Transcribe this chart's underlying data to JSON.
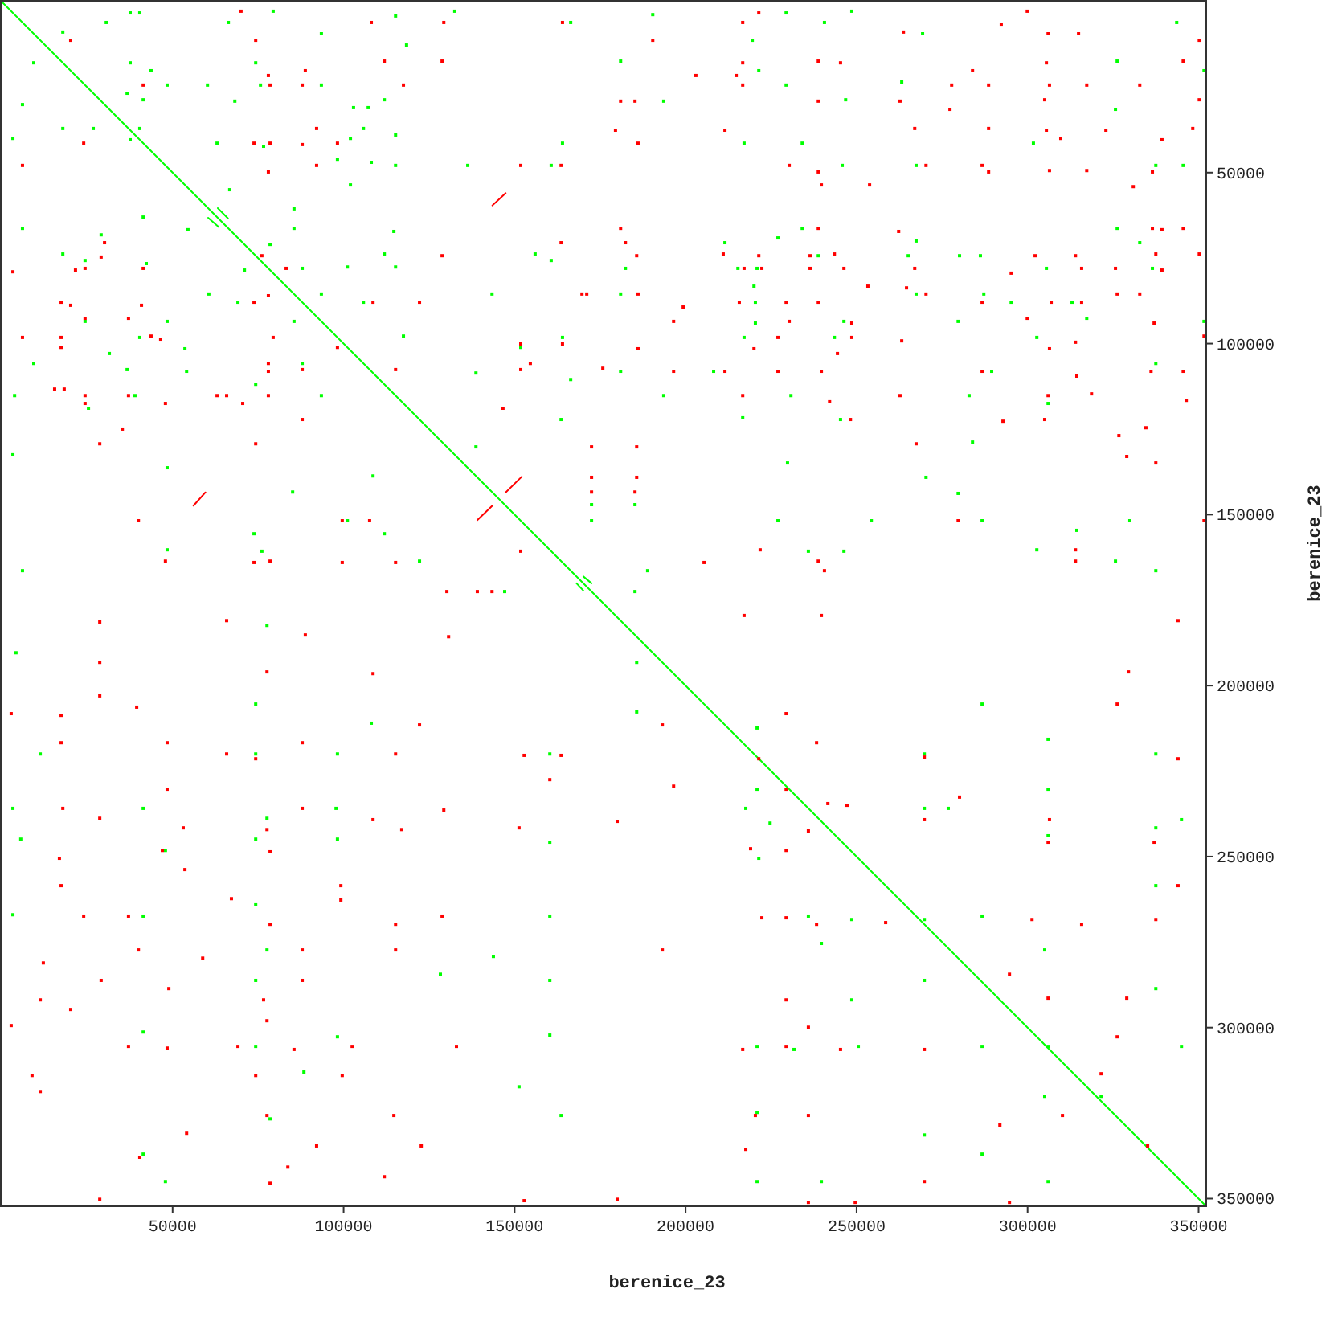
{
  "chart_data": {
    "type": "scatter",
    "xlabel": "berenice_23",
    "ylabel": "berenice_23",
    "xlim": [
      0,
      352000
    ],
    "ylim": [
      352000,
      0
    ],
    "xticks": [
      50000,
      100000,
      150000,
      200000,
      250000,
      300000,
      350000
    ],
    "yticks": [
      50000,
      100000,
      150000,
      200000,
      250000,
      300000,
      350000
    ],
    "marker": "square",
    "series": [
      {
        "type": "line",
        "color": "#00ff00",
        "marker": "none",
        "x": [
          0,
          352000
        ],
        "values": [
          0,
          352000
        ]
      },
      {
        "color": "#00ff00",
        "x": [
          37600,
          40400,
          30600,
          66300,
          79400,
          17900,
          9400,
          37600,
          74300,
          43700,
          48400,
          60200,
          75700,
          93500,
          36700,
          6100,
          41400,
          68200,
          102900,
          107200,
          111900,
          17900,
          26800,
          40400,
          105800,
          115200,
          3300,
          37600,
          63000,
          76600,
          102000,
          98200,
          108100,
          115200,
          136300,
          160700,
          164000,
          118400,
          115200,
          132500,
          166400,
          93500,
          66700,
          102000,
          41400,
          54500,
          6100,
          85500,
          85500,
          114700,
          29100,
          17900,
          24400,
          42300,
          78500,
          71000,
          87900,
          101100,
          111900,
          115200,
          156000,
          160700,
          143400,
          60600,
          69100,
          93500,
          105800,
          85500,
          24400,
          48400,
          40400,
          117500,
          151800,
          164000,
          31500,
          53600,
          9400,
          36700,
          54100,
          87900,
          3800,
          39000,
          74300,
          93500,
          25400,
          138700,
          166400,
          163600,
          138700,
          108600,
          85100,
          48400,
          3300,
          73800,
          111900,
          101100,
          48400,
          76100,
          122200,
          6100,
          147100,
          172500,
          172500,
          190400,
          229400,
          248600,
          240600,
          219500,
          269300,
          343600,
          181000,
          221400,
          229400,
          263200,
          326200,
          351600,
          193600,
          246800,
          325700,
          217100,
          234100,
          301700,
          245800,
          267400,
          337500,
          345500,
          227000,
          211500,
          234100,
          267400,
          326200,
          332800,
          182400,
          215300,
          220900,
          238800,
          265100,
          280100,
          286200,
          305500,
          336500,
          220000,
          181000,
          267400,
          287200,
          220400,
          295200,
          313000,
          220400,
          246300,
          279700,
          317300,
          351600,
          217100,
          243500,
          302700,
          337500,
          181000,
          208200,
          289500,
          193600,
          230800,
          282900,
          306000,
          216700,
          245300,
          283900,
          229800,
          270300,
          279700,
          185200,
          227000,
          254300,
          286700,
          329900,
          314400,
          235900,
          246300,
          302700,
          325700,
          188900,
          337500,
          185200,
          77600,
          4200,
          74300,
          108100,
          74300,
          98200,
          11300,
          3300,
          41400,
          97800,
          77600,
          74300,
          98200,
          5600,
          47900,
          74300,
          3300,
          41400,
          77600,
          74300,
          41400,
          98200,
          74300,
          88400,
          78500,
          41400,
          47900,
          163600,
          160300,
          160300,
          160300,
          160300,
          160300,
          128300,
          151300,
          143800,
          185700,
          185700,
          220900,
          220900,
          217600,
          224700,
          221400,
          235900,
          239700,
          248600,
          248600,
          220900,
          231700,
          250500,
          269800,
          269800,
          276800,
          269800,
          286700,
          286700,
          306000,
          306000,
          306000,
          305000,
          306000,
          305000,
          337500,
          337500,
          345000,
          345000,
          337500,
          337500,
          269800,
          286700,
          269800,
          286700,
          306000,
          321500,
          220900,
          220900,
          239700
        ],
        "values": [
          3300,
          3300,
          6100,
          6100,
          2800,
          8900,
          17900,
          17900,
          17900,
          20200,
          24400,
          24400,
          24400,
          24400,
          26800,
          30100,
          28700,
          29100,
          31000,
          31000,
          28700,
          37100,
          37100,
          37100,
          37100,
          39000,
          40000,
          40400,
          41400,
          42300,
          40000,
          46100,
          47000,
          47900,
          47900,
          47900,
          41400,
          12700,
          4200,
          2800,
          6100,
          9400,
          55000,
          53600,
          63000,
          66700,
          66300,
          60600,
          66300,
          67200,
          68200,
          73800,
          75700,
          76600,
          71000,
          78500,
          78000,
          77600,
          73800,
          77600,
          73800,
          75700,
          85500,
          85500,
          87900,
          85500,
          87900,
          93500,
          93500,
          93500,
          98200,
          97800,
          101100,
          98200,
          102900,
          101500,
          105800,
          107600,
          108100,
          105800,
          115200,
          115200,
          111900,
          115200,
          118900,
          108600,
          110500,
          122200,
          130200,
          138700,
          143400,
          136300,
          132500,
          155600,
          155600,
          151800,
          160300,
          160700,
          163600,
          166400,
          172500,
          147100,
          151800,
          3800,
          3300,
          2800,
          6100,
          11300,
          9400,
          6100,
          17400,
          20200,
          24400,
          23500,
          17400,
          20200,
          29100,
          28700,
          31500,
          41400,
          41400,
          41400,
          47900,
          47900,
          47900,
          47900,
          69100,
          70500,
          66300,
          70000,
          66300,
          70500,
          78000,
          78000,
          78000,
          74300,
          74300,
          74300,
          74300,
          78000,
          78000,
          83200,
          85500,
          85500,
          85500,
          87900,
          87900,
          87900,
          94000,
          93500,
          93500,
          92600,
          93500,
          98200,
          98200,
          98200,
          105800,
          108100,
          108100,
          108100,
          115200,
          115200,
          115200,
          117500,
          121700,
          122200,
          128800,
          134900,
          139100,
          143800,
          147100,
          151800,
          151800,
          151800,
          151800,
          154600,
          160700,
          160700,
          160300,
          163600,
          166400,
          166400,
          172500,
          182400,
          190400,
          205400,
          211000,
          220000,
          220000,
          220000,
          235900,
          235900,
          235900,
          238800,
          244900,
          244900,
          244900,
          248200,
          264100,
          267000,
          267400,
          277300,
          286200,
          301300,
          302700,
          305500,
          313000,
          326700,
          337000,
          345000,
          325700,
          302200,
          267400,
          286200,
          245800,
          220000,
          284400,
          317300,
          279200,
          193200,
          207700,
          212400,
          230300,
          235900,
          240200,
          250500,
          267400,
          275400,
          268400,
          291900,
          305500,
          306400,
          305500,
          220000,
          235900,
          235900,
          268400,
          267400,
          205400,
          215700,
          230300,
          243900,
          277300,
          305500,
          320100,
          220000,
          241600,
          239200,
          305500,
          288600,
          258500,
          286200,
          305500,
          331400,
          337000,
          345000,
          320100,
          324800,
          345000,
          345000
        ]
      },
      {
        "color": "#ff0000",
        "x": [
          70000,
          108100,
          129300,
          164000,
          20200,
          74300,
          88800,
          111900,
          128800,
          78000,
          78500,
          87900,
          41400,
          117500,
          92100,
          24000,
          73800,
          78500,
          87900,
          98200,
          6100,
          92100,
          151800,
          163600,
          78000,
          30100,
          29100,
          21600,
          24400,
          41400,
          3300,
          76100,
          83200,
          128800,
          163600,
          169700,
          171100,
          17400,
          20200,
          40900,
          24400,
          37100,
          73800,
          78000,
          108600,
          122200,
          6100,
          17400,
          17400,
          43700,
          46500,
          79400,
          98200,
          151800,
          164000,
          154600,
          151800,
          175800,
          78000,
          78000,
          87900,
          115200,
          15500,
          18300,
          24400,
          24400,
          37100,
          47900,
          63000,
          65800,
          70500,
          78000,
          146600,
          87900,
          35300,
          28700,
          74300,
          172500,
          172500,
          172500,
          40000,
          99600,
          107600,
          151800,
          47900,
          73800,
          78500,
          99600,
          115200,
          130200,
          139100,
          143400,
          221400,
          299900,
          216700,
          292300,
          263700,
          306000,
          314900,
          190400,
          350200,
          216700,
          238800,
          245300,
          305500,
          345500,
          203000,
          214800,
          283900,
          216700,
          277800,
          288600,
          306400,
          317300,
          332800,
          181000,
          185200,
          238800,
          262700,
          277300,
          305000,
          350200,
          179500,
          211500,
          267000,
          288600,
          305500,
          322900,
          348300,
          186100,
          309700,
          339300,
          230300,
          238800,
          270300,
          286700,
          288600,
          306400,
          317300,
          336500,
          253800,
          239700,
          330900,
          181000,
          238800,
          262300,
          336500,
          345500,
          339300,
          182400,
          185700,
          211000,
          221400,
          236400,
          243500,
          302200,
          314000,
          337500,
          350200,
          217100,
          222300,
          236400,
          246300,
          267000,
          315800,
          325700,
          339300,
          253300,
          264600,
          295200,
          186100,
          270300,
          326200,
          332800,
          199300,
          215700,
          229400,
          238800,
          286700,
          306900,
          315800,
          196500,
          230300,
          248600,
          299900,
          337000,
          227000,
          248600,
          263200,
          314000,
          351600,
          186100,
          220000,
          244400,
          306400,
          196500,
          211500,
          227000,
          239700,
          286700,
          314400,
          336100,
          345500,
          216700,
          242100,
          262700,
          306000,
          318700,
          346400,
          248200,
          292800,
          305000,
          326700,
          334600,
          185700,
          267400,
          329000,
          337500,
          185700,
          185200,
          279700,
          351600,
          221800,
          314000,
          205400,
          238800,
          314000,
          240600,
          28700,
          65800,
          88800,
          130700,
          28700,
          77600,
          108600,
          28700,
          39500,
          17400,
          122200,
          2800,
          17400,
          48400,
          65800,
          74300,
          87900,
          115200,
          152800,
          163600,
          17900,
          48400,
          87900,
          108600,
          129300,
          28700,
          53100,
          77600,
          117000,
          151300,
          47000,
          78500,
          16900,
          53600,
          99200,
          180000,
          196500,
          160300,
          17400,
          67200,
          99200,
          24000,
          37100,
          78500,
          115200,
          128800,
          40000,
          87900,
          115200,
          58800,
          12200,
          29100,
          48900,
          87900,
          11300,
          76600,
          20200,
          77600,
          2800,
          37100,
          48400,
          69100,
          85500,
          102500,
          133000,
          8900,
          74300,
          99600,
          11300,
          77600,
          114700,
          54100,
          92100,
          122700,
          40400,
          83700,
          111900,
          78500,
          28700,
          180000,
          152800,
          193200,
          217100,
          239700,
          229400,
          238300,
          221400,
          229400,
          241600,
          247200,
          235900,
          229400,
          219000,
          258500,
          222300,
          229400,
          238300,
          193200,
          229400,
          235900,
          216700,
          229400,
          245300,
          269800,
          280100,
          269800,
          306000,
          306400,
          326200,
          329500,
          344000,
          344000,
          344000,
          337000,
          294700,
          306000,
          326200,
          329000,
          269800,
          321500,
          291900,
          310200,
          335100,
          269800,
          294700,
          337500,
          301300,
          315800,
          220400,
          235900,
          217600,
          235900,
          249600
        ],
        "values": [
          2800,
          6100,
          6100,
          6100,
          11300,
          11300,
          20200,
          17400,
          17400,
          21600,
          24400,
          24400,
          24400,
          24400,
          37100,
          41400,
          41400,
          41400,
          41800,
          41400,
          47900,
          47900,
          47900,
          47900,
          49800,
          70500,
          74700,
          78500,
          78000,
          78000,
          79000,
          74300,
          78000,
          74300,
          70500,
          85500,
          85500,
          87900,
          88800,
          88800,
          92600,
          92600,
          87900,
          86000,
          87900,
          87900,
          98200,
          98200,
          101100,
          97800,
          98700,
          98200,
          101100,
          100100,
          100100,
          105800,
          107600,
          107200,
          105800,
          108100,
          107600,
          107600,
          113300,
          113300,
          115200,
          117500,
          115200,
          117500,
          115200,
          115200,
          117500,
          115200,
          118900,
          122200,
          125000,
          129300,
          129300,
          130200,
          139100,
          143400,
          151800,
          151800,
          151800,
          160700,
          163600,
          164000,
          163600,
          164000,
          164000,
          172500,
          172500,
          172500,
          3300,
          2800,
          6100,
          6600,
          8900,
          9400,
          9400,
          11300,
          11300,
          17900,
          17400,
          17900,
          17900,
          17400,
          21600,
          21600,
          20200,
          24400,
          24400,
          24400,
          24400,
          24400,
          24400,
          29100,
          29100,
          29100,
          29100,
          31500,
          28700,
          28700,
          37600,
          37600,
          37100,
          37100,
          37600,
          37600,
          37100,
          41400,
          40000,
          40400,
          47900,
          49800,
          47900,
          47900,
          49800,
          49400,
          49400,
          49800,
          53600,
          53600,
          54100,
          66300,
          66300,
          67200,
          66300,
          66300,
          66700,
          70500,
          74300,
          73800,
          74300,
          74300,
          73800,
          74300,
          74300,
          73800,
          73800,
          78000,
          78000,
          78000,
          78000,
          78000,
          78000,
          78000,
          78500,
          83200,
          83700,
          79400,
          85500,
          85500,
          85500,
          85500,
          89300,
          87900,
          87900,
          87900,
          87900,
          87900,
          87900,
          93500,
          93500,
          94000,
          92600,
          94000,
          98200,
          98200,
          99200,
          99600,
          97800,
          101500,
          101500,
          102900,
          101500,
          108100,
          108100,
          108100,
          108100,
          108100,
          109500,
          108100,
          108100,
          115200,
          117000,
          115200,
          115200,
          114700,
          116600,
          122200,
          122700,
          122200,
          126900,
          124600,
          130200,
          129300,
          133000,
          134900,
          139100,
          143400,
          151800,
          151800,
          160300,
          160300,
          164000,
          163600,
          163600,
          166400,
          181400,
          181000,
          185200,
          185700,
          193200,
          196000,
          196500,
          203000,
          206300,
          208700,
          211500,
          208200,
          216700,
          216700,
          220000,
          221400,
          216700,
          220000,
          220400,
          220400,
          235900,
          230300,
          235900,
          239200,
          236400,
          238800,
          241600,
          242100,
          242100,
          241600,
          248200,
          248600,
          250500,
          253800,
          258500,
          239700,
          229400,
          227500,
          258500,
          262300,
          262700,
          267400,
          267400,
          269800,
          269800,
          267400,
          277300,
          277300,
          277300,
          279700,
          281100,
          286200,
          288600,
          286200,
          291900,
          291900,
          294700,
          298000,
          299400,
          305500,
          306000,
          305500,
          306400,
          305500,
          305500,
          314000,
          314000,
          314000,
          318700,
          325700,
          325700,
          330900,
          334600,
          334600,
          337900,
          340800,
          343600,
          345500,
          350200,
          350200,
          350600,
          211500,
          179500,
          179500,
          208200,
          216700,
          221400,
          230300,
          234500,
          235000,
          242500,
          248200,
          247700,
          269300,
          267900,
          267900,
          269800,
          277300,
          291900,
          299900,
          306400,
          305500,
          306400,
          220900,
          232600,
          239200,
          245800,
          239200,
          205400,
          196000,
          181000,
          221400,
          258500,
          245800,
          284400,
          291400,
          302700,
          291400,
          306400,
          313500,
          328500,
          325700,
          334600,
          345000,
          351100,
          268400,
          268400,
          269800,
          325700,
          325700,
          335600,
          351100,
          351100
        ]
      },
      {
        "type": "line",
        "color": "#ff0000",
        "marker": "none",
        "x": [
          143500,
          147400
        ],
        "values": [
          59600,
          56000
        ]
      },
      {
        "type": "line",
        "color": "#ff0000",
        "marker": "none",
        "x": [
          56100,
          59600
        ],
        "values": [
          147400,
          143500
        ]
      },
      {
        "type": "line",
        "color": "#ff0000",
        "marker": "none",
        "x": [
          139100,
          143500
        ],
        "values": [
          151600,
          147400
        ]
      },
      {
        "type": "line",
        "color": "#ff0000",
        "marker": "none",
        "x": [
          147400,
          152100
        ],
        "values": [
          143500,
          138900
        ]
      },
      {
        "type": "line",
        "color": "#00ff00",
        "marker": "none",
        "x": [
          60400,
          63500
        ],
        "values": [
          63200,
          65900
        ]
      },
      {
        "type": "line",
        "color": "#00ff00",
        "marker": "none",
        "x": [
          63200,
          66200
        ],
        "values": [
          60400,
          63400
        ]
      },
      {
        "type": "line",
        "color": "#00ff00",
        "marker": "none",
        "x": [
          170100,
          172500
        ],
        "values": [
          168100,
          170100
        ]
      },
      {
        "type": "line",
        "color": "#00ff00",
        "marker": "none",
        "x": [
          168100,
          170100
        ],
        "values": [
          170100,
          172200
        ]
      }
    ]
  }
}
